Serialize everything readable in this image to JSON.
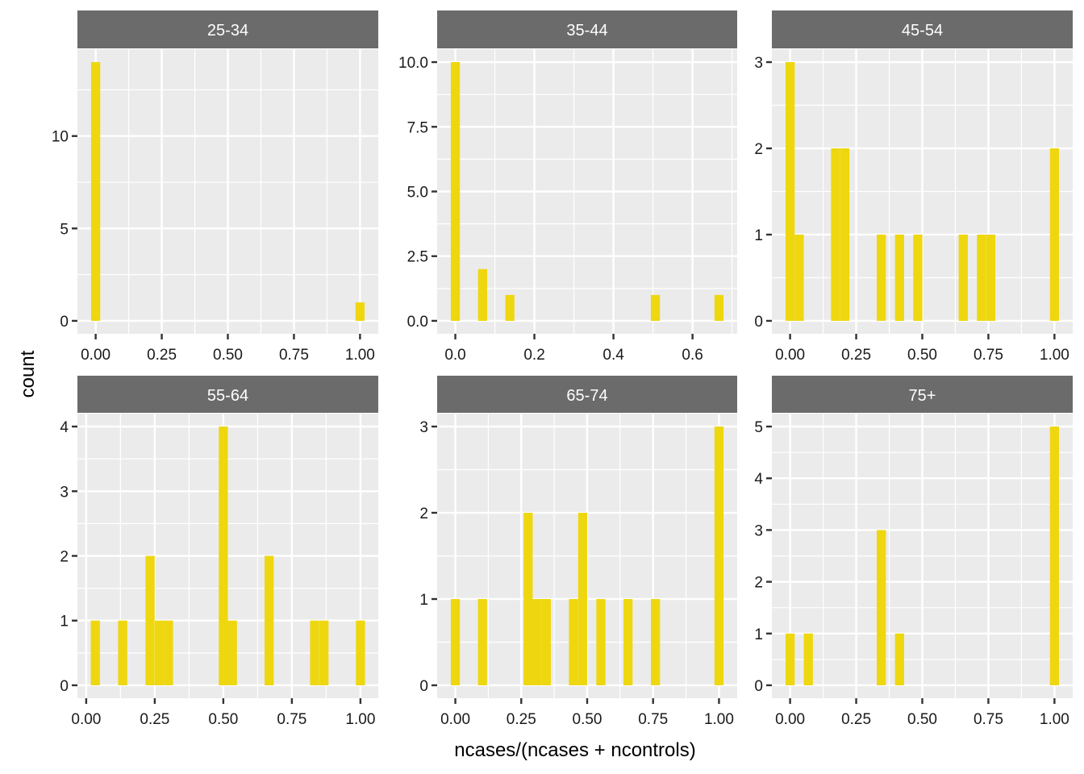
{
  "chart_data": {
    "type": "bar",
    "subtype": "faceted-histogram",
    "xlabel": "ncases/(ncases + ncontrols)",
    "ylabel": "count",
    "grid": true,
    "legend": "none",
    "colors": {
      "bar": "#EED70F",
      "panel_background": "#EBEBEB",
      "strip_background": "#6B6B6B",
      "strip_text": "#FFFFFF",
      "grid": "#FFFFFF"
    },
    "panels": [
      {
        "title": "25-34",
        "bin_width": 0.0345,
        "xlim": [
          -0.069,
          1.069
        ],
        "ylim": [
          -0.7,
          14.7
        ],
        "x_ticks": [
          0,
          0.25,
          0.5,
          0.75,
          1
        ],
        "x_tick_labels": [
          "0.00",
          "0.25",
          "0.50",
          "0.75",
          "1.00"
        ],
        "y_ticks": [
          0,
          5,
          10
        ],
        "y_tick_labels": [
          "0",
          "5",
          "10"
        ],
        "bars": [
          {
            "x": 0.0,
            "count": 14
          },
          {
            "x": 1.0,
            "count": 1
          }
        ]
      },
      {
        "title": "35-44",
        "bin_width": 0.023,
        "xlim": [
          -0.046,
          0.713
        ],
        "ylim": [
          -0.5,
          10.5
        ],
        "x_ticks": [
          0,
          0.2,
          0.4,
          0.6
        ],
        "x_tick_labels": [
          "0.0",
          "0.2",
          "0.4",
          "0.6"
        ],
        "y_ticks": [
          0,
          2.5,
          5,
          7.5,
          10
        ],
        "y_tick_labels": [
          "0.0",
          "2.5",
          "5.0",
          "7.5",
          "10.0"
        ],
        "bars": [
          {
            "x": 0.0,
            "count": 10
          },
          {
            "x": 0.069,
            "count": 2
          },
          {
            "x": 0.138,
            "count": 1
          },
          {
            "x": 0.506,
            "count": 1
          },
          {
            "x": 0.667,
            "count": 1
          }
        ]
      },
      {
        "title": "45-54",
        "bin_width": 0.0345,
        "xlim": [
          -0.069,
          1.069
        ],
        "ylim": [
          -0.15,
          3.15
        ],
        "x_ticks": [
          0,
          0.25,
          0.5,
          0.75,
          1
        ],
        "x_tick_labels": [
          "0.00",
          "0.25",
          "0.50",
          "0.75",
          "1.00"
        ],
        "y_ticks": [
          0,
          1,
          2,
          3
        ],
        "y_tick_labels": [
          "0",
          "1",
          "2",
          "3"
        ],
        "bars": [
          {
            "x": 0.0,
            "count": 3
          },
          {
            "x": 0.0345,
            "count": 1
          },
          {
            "x": 0.172,
            "count": 2
          },
          {
            "x": 0.207,
            "count": 2
          },
          {
            "x": 0.345,
            "count": 1
          },
          {
            "x": 0.414,
            "count": 1
          },
          {
            "x": 0.483,
            "count": 1
          },
          {
            "x": 0.655,
            "count": 1
          },
          {
            "x": 0.724,
            "count": 1
          },
          {
            "x": 0.759,
            "count": 1
          },
          {
            "x": 1.0,
            "count": 2
          }
        ]
      },
      {
        "title": "55-64",
        "bin_width": 0.0333,
        "xlim": [
          -0.032,
          1.065
        ],
        "ylim": [
          -0.2,
          4.2
        ],
        "x_ticks": [
          0,
          0.25,
          0.5,
          0.75,
          1
        ],
        "x_tick_labels": [
          "0.00",
          "0.25",
          "0.50",
          "0.75",
          "1.00"
        ],
        "y_ticks": [
          0,
          1,
          2,
          3,
          4
        ],
        "y_tick_labels": [
          "0",
          "1",
          "2",
          "3",
          "4"
        ],
        "bars": [
          {
            "x": 0.0333,
            "count": 1
          },
          {
            "x": 0.133,
            "count": 1
          },
          {
            "x": 0.233,
            "count": 2
          },
          {
            "x": 0.267,
            "count": 1
          },
          {
            "x": 0.3,
            "count": 1
          },
          {
            "x": 0.5,
            "count": 4
          },
          {
            "x": 0.533,
            "count": 1
          },
          {
            "x": 0.667,
            "count": 2
          },
          {
            "x": 0.833,
            "count": 1
          },
          {
            "x": 0.867,
            "count": 1
          },
          {
            "x": 1.0,
            "count": 1
          }
        ]
      },
      {
        "title": "65-74",
        "bin_width": 0.0345,
        "xlim": [
          -0.069,
          1.069
        ],
        "ylim": [
          -0.15,
          3.15
        ],
        "x_ticks": [
          0,
          0.25,
          0.5,
          0.75,
          1
        ],
        "x_tick_labels": [
          "0.00",
          "0.25",
          "0.50",
          "0.75",
          "1.00"
        ],
        "y_ticks": [
          0,
          1,
          2,
          3
        ],
        "y_tick_labels": [
          "0",
          "1",
          "2",
          "3"
        ],
        "bars": [
          {
            "x": 0.0,
            "count": 1
          },
          {
            "x": 0.103,
            "count": 1
          },
          {
            "x": 0.276,
            "count": 2
          },
          {
            "x": 0.31,
            "count": 1
          },
          {
            "x": 0.345,
            "count": 1
          },
          {
            "x": 0.448,
            "count": 1
          },
          {
            "x": 0.483,
            "count": 2
          },
          {
            "x": 0.552,
            "count": 1
          },
          {
            "x": 0.655,
            "count": 1
          },
          {
            "x": 0.759,
            "count": 1
          },
          {
            "x": 1.0,
            "count": 3
          }
        ]
      },
      {
        "title": "75+",
        "bin_width": 0.0345,
        "xlim": [
          -0.069,
          1.069
        ],
        "ylim": [
          -0.25,
          5.25
        ],
        "x_ticks": [
          0,
          0.25,
          0.5,
          0.75,
          1
        ],
        "x_tick_labels": [
          "0.00",
          "0.25",
          "0.50",
          "0.75",
          "1.00"
        ],
        "y_ticks": [
          0,
          1,
          2,
          3,
          4,
          5
        ],
        "y_tick_labels": [
          "0",
          "1",
          "2",
          "3",
          "4",
          "5"
        ],
        "bars": [
          {
            "x": 0.0,
            "count": 1
          },
          {
            "x": 0.069,
            "count": 1
          },
          {
            "x": 0.345,
            "count": 3
          },
          {
            "x": 0.414,
            "count": 1
          },
          {
            "x": 1.0,
            "count": 5
          }
        ]
      }
    ]
  }
}
